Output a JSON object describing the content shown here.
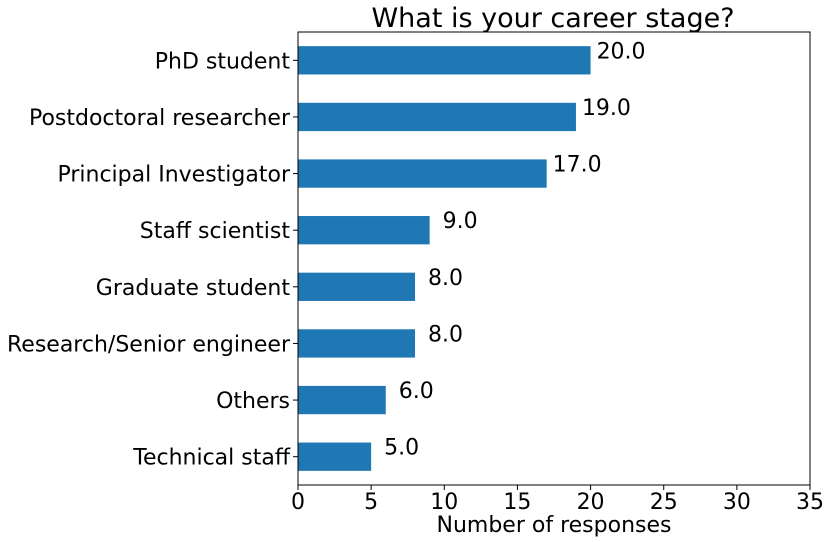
{
  "chart_data": {
    "type": "bar",
    "orientation": "horizontal",
    "title": "What is your career stage?",
    "xlabel": "Number of responses",
    "ylabel": "",
    "categories": [
      "PhD student",
      "Postdoctoral researcher",
      "Principal Investigator",
      "Staff scientist",
      "Graduate student",
      "Research/Senior engineer",
      "Others",
      "Technical staff"
    ],
    "values": [
      20,
      19,
      17,
      9,
      8,
      8,
      6,
      5
    ],
    "value_labels": [
      "20.0",
      "19.0",
      "17.0",
      "9.0",
      "8.0",
      "8.0",
      "6.0",
      "5.0"
    ],
    "xlim": [
      0,
      35
    ],
    "xticks": [
      0,
      5,
      10,
      15,
      20,
      25,
      30,
      35
    ],
    "bar_color": "#1f77b4",
    "grid": false,
    "legend": "none"
  }
}
